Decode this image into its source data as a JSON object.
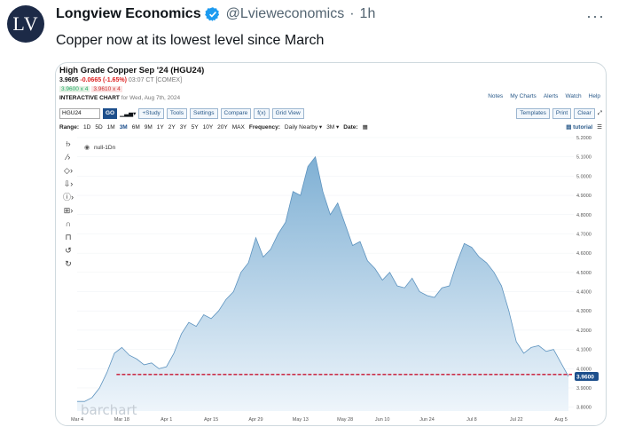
{
  "tweet": {
    "avatar_text": "LV",
    "author_name": "Longview Economics",
    "handle": "@Lvieweconomics",
    "separator": "·",
    "time": "1h",
    "text": "Copper now at its lowest level since March",
    "more_icon": "···"
  },
  "chart": {
    "title": "High Grade Copper Sep '24 (HGU24)",
    "last": "3.9605",
    "change": "-0.0665 (-1.65%)",
    "time": "03:07 CT [COMEX]",
    "bid": "3.9600 x 4",
    "ask": "3.9610 x 4",
    "interactive_label": "INTERACTIVE CHART",
    "interactive_date": "for Wed, Aug 7th, 2024",
    "top_links": [
      "Notes",
      "My Charts",
      "Alerts",
      "Watch",
      "Help"
    ],
    "symbol_value": "HGU24",
    "go": "GO",
    "toolbar_buttons": [
      "+Study",
      "Tools",
      "Settings",
      "Compare",
      "f(x)",
      "Grid View"
    ],
    "right_buttons": [
      "Templates",
      "Print",
      "Clear"
    ],
    "range_label": "Range:",
    "ranges": [
      "1D",
      "5D",
      "1M",
      "3M",
      "6M",
      "9M",
      "1Y",
      "2Y",
      "3Y",
      "5Y",
      "10Y",
      "20Y",
      "MAX"
    ],
    "active_range": "3M",
    "frequency_label": "Frequency:",
    "frequency_value": "Daily Nearby",
    "period_value": "3M",
    "date_label": "Date:",
    "tutorial": "tutorial",
    "legend_text": "null-1Dn",
    "watermark": "barchart",
    "price_label": "3.9600",
    "colors": {
      "accent": "#1d4f8c",
      "area_top": "#7fb0d4",
      "area_bottom": "#eef5fb",
      "line": "#5d93bf",
      "dash": "#c8102e"
    }
  },
  "chart_data": {
    "type": "area",
    "title": "High Grade Copper Sep '24 (HGU24)",
    "x_tick_labels": [
      "Mar 4",
      "Mar 18",
      "Apr 1",
      "Apr 15",
      "Apr 29",
      "May 13",
      "May 28",
      "Jun 10",
      "Jun 24",
      "Jul 8",
      "Jul 22",
      "Aug 5"
    ],
    "y_ticks": [
      "5.2000",
      "5.1000",
      "5.0000",
      "4.9000",
      "4.8000",
      "4.7000",
      "4.6000",
      "4.5000",
      "4.4000",
      "4.3000",
      "4.2000",
      "4.1000",
      "4.0000",
      "3.9000",
      "3.8000"
    ],
    "ylim": [
      3.78,
      5.2
    ],
    "reference_line": 3.97,
    "last_value": 3.96,
    "x": [
      "Mar 4",
      "Mar 6",
      "Mar 8",
      "Mar 11",
      "Mar 13",
      "Mar 15",
      "Mar 18",
      "Mar 20",
      "Mar 22",
      "Mar 25",
      "Mar 27",
      "Mar 29",
      "Apr 1",
      "Apr 3",
      "Apr 5",
      "Apr 8",
      "Apr 10",
      "Apr 12",
      "Apr 15",
      "Apr 17",
      "Apr 19",
      "Apr 22",
      "Apr 24",
      "Apr 26",
      "Apr 29",
      "May 1",
      "May 3",
      "May 6",
      "May 8",
      "May 10",
      "May 13",
      "May 15",
      "May 17",
      "May 20",
      "May 22",
      "May 24",
      "May 28",
      "May 30",
      "Jun 3",
      "Jun 5",
      "Jun 7",
      "Jun 10",
      "Jun 12",
      "Jun 14",
      "Jun 17",
      "Jun 19",
      "Jun 21",
      "Jun 24",
      "Jun 26",
      "Jun 28",
      "Jul 1",
      "Jul 3",
      "Jul 5",
      "Jul 8",
      "Jul 10",
      "Jul 12",
      "Jul 15",
      "Jul 17",
      "Jul 19",
      "Jul 22",
      "Jul 24",
      "Jul 26",
      "Jul 29",
      "Jul 31",
      "Aug 2",
      "Aug 5",
      "Aug 7"
    ],
    "series": [
      {
        "values": [
          3.83,
          3.83,
          3.85,
          3.9,
          3.98,
          4.08,
          4.11,
          4.07,
          4.05,
          4.02,
          4.03,
          4.0,
          4.01,
          4.08,
          4.18,
          4.24,
          4.22,
          4.28,
          4.26,
          4.3,
          4.36,
          4.4,
          4.5,
          4.55,
          4.68,
          4.58,
          4.62,
          4.7,
          4.76,
          4.92,
          4.9,
          5.05,
          5.1,
          4.92,
          4.8,
          4.86,
          4.75,
          4.64,
          4.66,
          4.56,
          4.52,
          4.46,
          4.5,
          4.43,
          4.42,
          4.47,
          4.4,
          4.38,
          4.37,
          4.42,
          4.43,
          4.55,
          4.65,
          4.63,
          4.58,
          4.55,
          4.5,
          4.43,
          4.3,
          4.14,
          4.08,
          4.11,
          4.12,
          4.09,
          4.1,
          4.03,
          3.96
        ]
      }
    ]
  }
}
